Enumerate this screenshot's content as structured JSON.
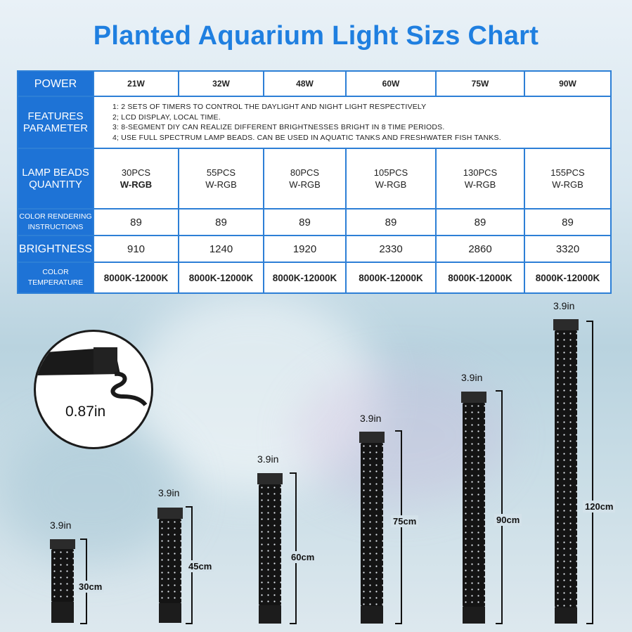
{
  "title": "Planted Aquarium Light Sizs Chart",
  "table": {
    "headers": {
      "power": "POWER",
      "features": [
        "FEATURES",
        "PARAMETER"
      ],
      "beads": [
        "LAMP BEADS",
        "QUANTITY"
      ],
      "cri": [
        "COLOR RENDERING",
        "INSTRUCTIONS"
      ],
      "brightness": "BRIGHTNESS",
      "temp": [
        "COLOR",
        "TEMPERATURE"
      ]
    },
    "power": [
      "21W",
      "32W",
      "48W",
      "60W",
      "75W",
      "90W"
    ],
    "features": [
      "1: 2 SETS OF TIMERS TO CONTROL THE DAYLIGHT AND NIGHT LIGHT RESPECTIVELY",
      "2; LCD DISPLAY, LOCAL TIME.",
      "3: 8-SEGMENT DIY CAN REALIZE DIFFERENT BRIGHTNESSES BRIGHT IN 8 TIME PERIODS.",
      "4; USE FULL SPECTRUM LAMP BEADS. CAN BE USED IN AQUATIC TANKS AND FRESHWATER FISH TANKS."
    ],
    "beads": [
      "30PCS",
      "55PCS",
      "80PCS",
      "105PCS",
      "130PCS",
      "155PCS"
    ],
    "bead_type": "W-RGB",
    "cri": [
      "89",
      "89",
      "89",
      "89",
      "89",
      "89"
    ],
    "brightness": [
      "910",
      "1240",
      "1920",
      "2330",
      "2860",
      "3320"
    ],
    "temp": [
      "8000K-12000K",
      "8000K-12000K",
      "8000K-12000K",
      "8000K-12000K",
      "8000K-12000K",
      "8000K-12000K"
    ]
  },
  "thickness_label": "0.87in",
  "width_label": "3.9in",
  "lamps": [
    {
      "length": "30cm"
    },
    {
      "length": "45cm"
    },
    {
      "length": "60cm"
    },
    {
      "length": "75cm"
    },
    {
      "length": "90cm"
    },
    {
      "length": "120cm"
    }
  ]
}
